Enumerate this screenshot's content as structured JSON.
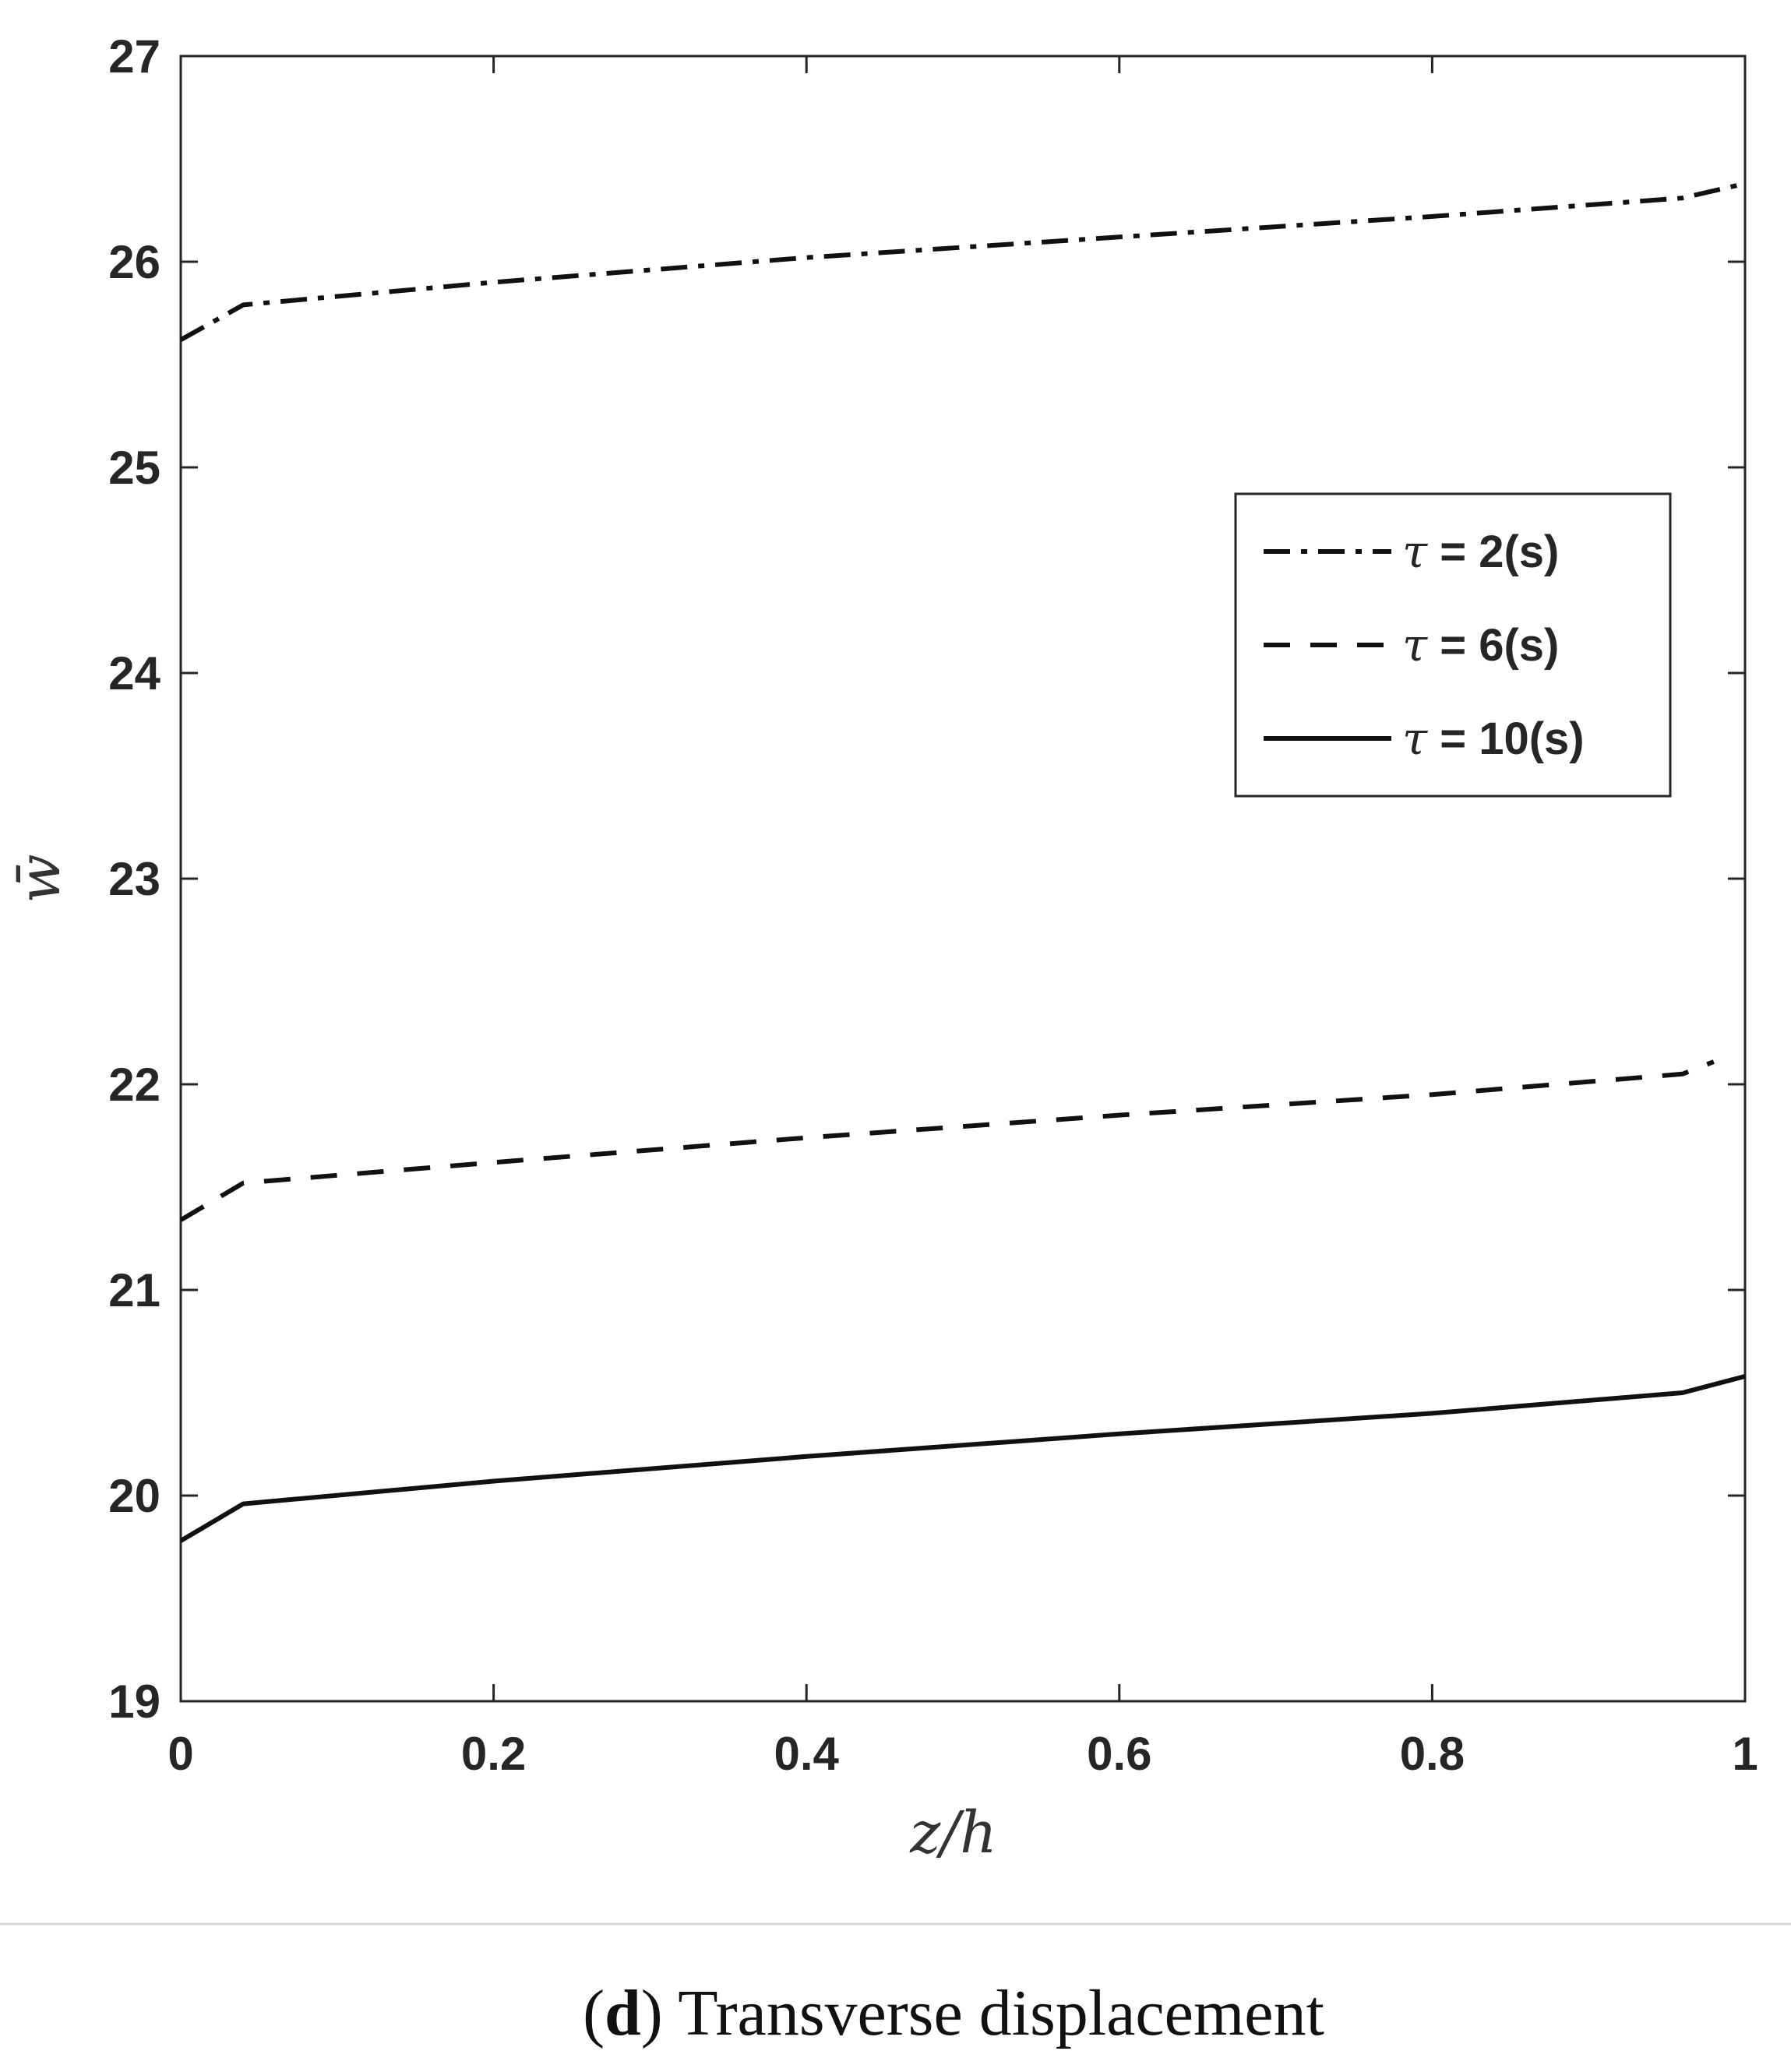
{
  "chart_data": {
    "type": "line",
    "xlabel": "z/h",
    "ylabel": "w̄",
    "xlim": [
      0,
      1
    ],
    "ylim": [
      19,
      27
    ],
    "xticks": [
      "0",
      "0.2",
      "0.4",
      "0.6",
      "0.8",
      "1"
    ],
    "yticks": [
      "19",
      "20",
      "21",
      "22",
      "23",
      "24",
      "25",
      "26",
      "27"
    ],
    "grid": false,
    "legend_position": "upper-right",
    "series": [
      {
        "name": "τ = 2(s)",
        "tau_symbol": "τ",
        "label_rest": " = 2(s)",
        "style": "dash-dot",
        "x": [
          0,
          0.04,
          0.2,
          0.4,
          0.6,
          0.8,
          0.96,
          1
        ],
        "y": [
          25.62,
          25.79,
          25.9,
          26.02,
          26.12,
          26.22,
          26.31,
          26.38
        ]
      },
      {
        "name": "τ = 6(s)",
        "tau_symbol": "τ",
        "label_rest": " = 6(s)",
        "style": "dashed",
        "x": [
          0,
          0.04,
          0.2,
          0.4,
          0.6,
          0.8,
          0.96,
          0.98
        ],
        "y": [
          21.34,
          21.52,
          21.62,
          21.74,
          21.85,
          21.95,
          22.05,
          22.11
        ]
      },
      {
        "name": "τ = 10(s)",
        "tau_symbol": "τ",
        "label_rest": " = 10(s)",
        "style": "solid",
        "x": [
          0,
          0.04,
          0.2,
          0.4,
          0.6,
          0.8,
          0.96,
          1
        ],
        "y": [
          19.78,
          19.96,
          20.07,
          20.19,
          20.3,
          20.4,
          20.5,
          20.58
        ]
      }
    ]
  },
  "caption": {
    "open_paren": "(",
    "letter": "d",
    "rest": ") Transverse displacement"
  }
}
